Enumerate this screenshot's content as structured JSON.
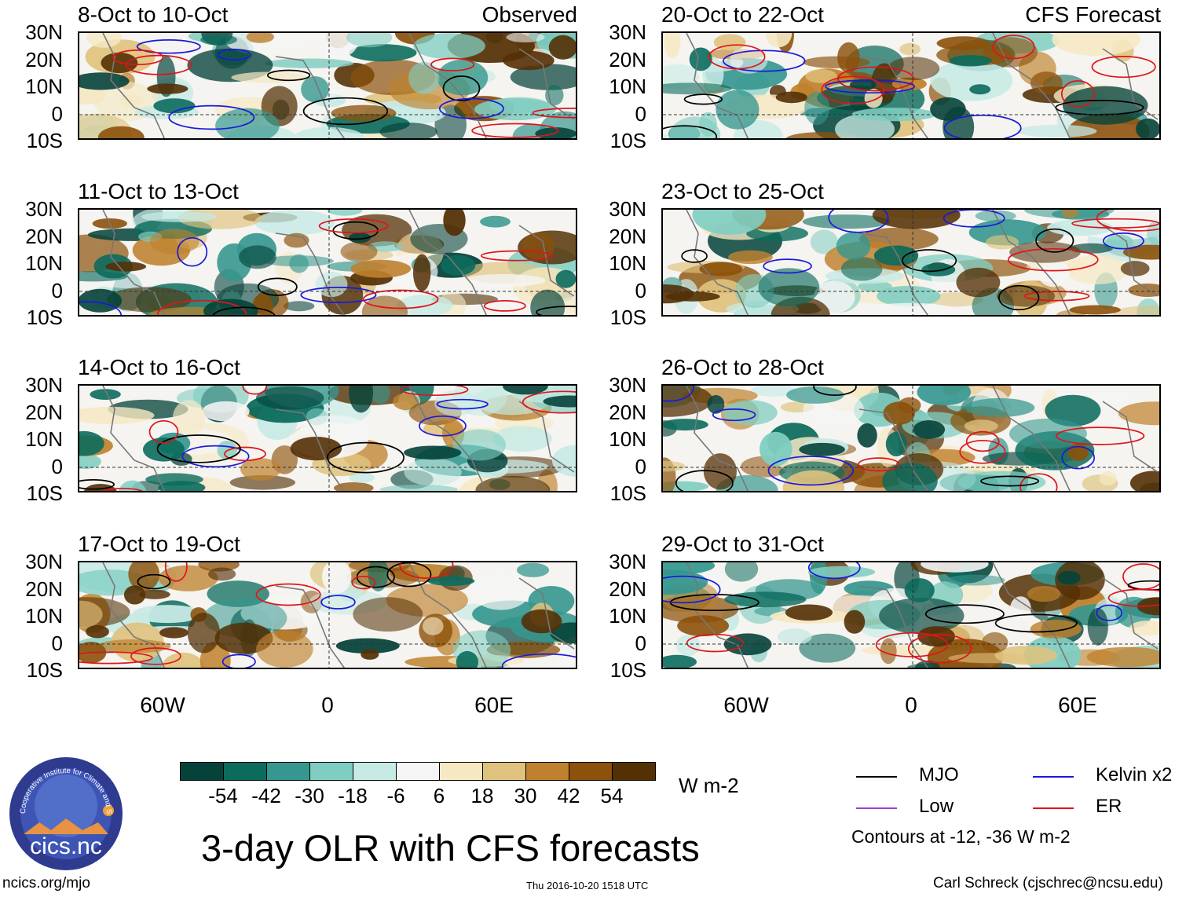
{
  "panels": [
    {
      "title": "8-Oct to 10-Oct",
      "tag": "Observed"
    },
    {
      "title": "20-Oct to 22-Oct",
      "tag": "CFS Forecast"
    },
    {
      "title": "11-Oct to 13-Oct",
      "tag": ""
    },
    {
      "title": "23-Oct to 25-Oct",
      "tag": ""
    },
    {
      "title": "14-Oct to 16-Oct",
      "tag": ""
    },
    {
      "title": "26-Oct to 28-Oct",
      "tag": ""
    },
    {
      "title": "17-Oct to 19-Oct",
      "tag": ""
    },
    {
      "title": "29-Oct to 31-Oct",
      "tag": ""
    }
  ],
  "lat_labels": [
    "30N",
    "20N",
    "10N",
    "0",
    "10S"
  ],
  "lon_labels": [
    "60W",
    "0",
    "60E"
  ],
  "colorbar": {
    "colors": [
      "#05433a",
      "#0b6b5d",
      "#35978f",
      "#80cdc1",
      "#c7eae5",
      "#f5f5f5",
      "#f6e8c3",
      "#dfc27d",
      "#bf812d",
      "#8c510a",
      "#543005"
    ],
    "ticks": [
      "-54",
      "-42",
      "-30",
      "-18",
      "-6",
      "6",
      "18",
      "30",
      "42",
      "54"
    ],
    "units": "W m-2"
  },
  "main_title": "3-day OLR with CFS forecasts",
  "legend": {
    "items": [
      {
        "label": "MJO",
        "color": "#000000"
      },
      {
        "label": "Kelvin x2",
        "color": "#1a1adb"
      },
      {
        "label": "Low",
        "color": "#9a3fdf"
      },
      {
        "label": "ER",
        "color": "#e0141a"
      }
    ],
    "note": "Contours at -12, -36 W m-2"
  },
  "logo": {
    "text": "cics.nc",
    "ring_text": "Cooperative Institute for Climate and Satellites"
  },
  "footer": {
    "left": "ncics.org/mjo",
    "center": "Thu 2016-10-20 1518 UTC",
    "right": "Carl Schreck (cjschrec@ncsu.edu)"
  }
}
